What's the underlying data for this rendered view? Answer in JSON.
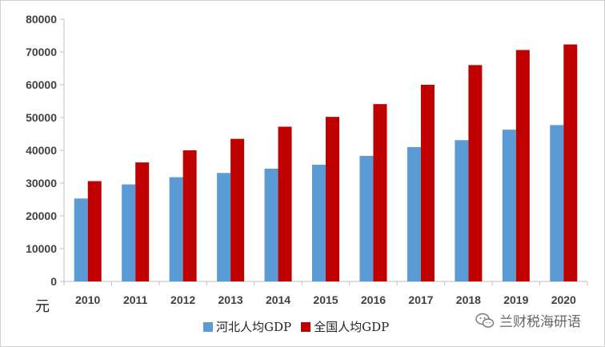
{
  "chart_data": {
    "type": "bar",
    "categories": [
      "2010",
      "2011",
      "2012",
      "2013",
      "2014",
      "2015",
      "2016",
      "2017",
      "2018",
      "2019",
      "2020"
    ],
    "series": [
      {
        "name": "河北人均GDP",
        "color": "#5b9bd5",
        "values": [
          25300,
          29600,
          31800,
          33100,
          34400,
          35600,
          38300,
          41000,
          43100,
          46300,
          47700
        ]
      },
      {
        "name": "全国人均GDP",
        "color": "#c00000",
        "values": [
          30600,
          36300,
          40000,
          43500,
          47200,
          50200,
          54100,
          60000,
          66000,
          70600,
          72300
        ]
      }
    ],
    "yticks": [
      "0",
      "10000",
      "20000",
      "30000",
      "40000",
      "50000",
      "60000",
      "70000",
      "80000"
    ],
    "ylim": [
      0,
      80000
    ],
    "ylabel": "元",
    "xlabel": "",
    "legend_position": "bottom"
  },
  "watermark": {
    "text": "兰财税海研语",
    "icon": "wechat-icon"
  }
}
